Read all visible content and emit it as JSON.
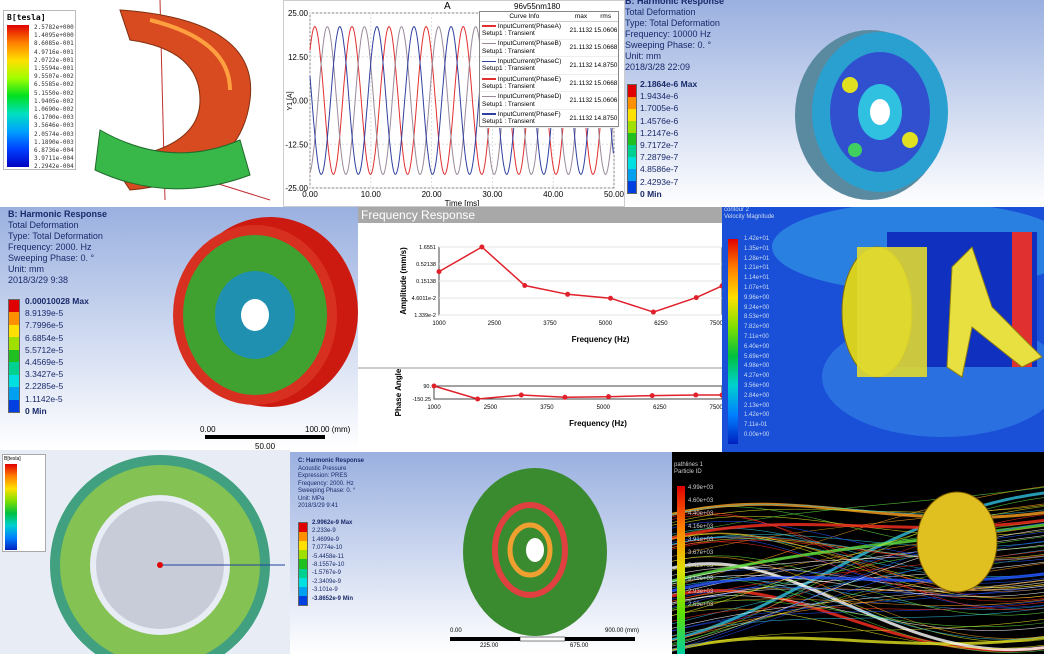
{
  "panel_magnet": {
    "legend_title": "B[tesla]",
    "legend_values": [
      "2.5782e+000",
      "1.4095e+000",
      "8.6085e-001",
      "4.9716e-001",
      "2.0722e-001",
      "1.5594e-001",
      "9.5507e-002",
      "6.5585e-002",
      "5.1550e-002",
      "1.9405e-002",
      "1.0690e-002",
      "6.1700e-003",
      "3.5646e-003",
      "2.0574e-003",
      "1.1890e-003",
      "6.8736e-004",
      "3.9711e-004",
      "2.2942e-004"
    ]
  },
  "panel_current": {
    "title": "A",
    "project_label": "96v55nm180",
    "legend_headers": [
      "Curve Info",
      "max",
      "rms"
    ],
    "legend_rows": [
      {
        "line1": "InputCurrent(PhaseA)",
        "line2": "Setup1 : Transient",
        "max": "21.1132",
        "rms": "15.0606",
        "color": "#e03030"
      },
      {
        "line1": "InputCurrent(PhaseB)",
        "line2": "Setup1 : Transient",
        "max": "21.1132",
        "rms": "15.0668",
        "color": "#9a8a9a"
      },
      {
        "line1": "InputCurrent(PhaseC)",
        "line2": "Setup1 : Transient",
        "max": "21.1132",
        "rms": "14.8750",
        "color": "#3040a0"
      },
      {
        "line1": "InputCurrent(PhaseE)",
        "line2": "Setup1 : Transient",
        "max": "21.1132",
        "rms": "15.0668",
        "color": "#e03030"
      },
      {
        "line1": "InputCurrent(PhaseD)",
        "line2": "Setup1 : Transient",
        "max": "21.1132",
        "rms": "15.0606",
        "color": "#9a8a9a"
      },
      {
        "line1": "InputCurrent(PhaseF)",
        "line2": "Setup1 : Transient",
        "max": "21.1132",
        "rms": "14.8750",
        "color": "#3040a0"
      }
    ]
  },
  "chart_data": [
    {
      "type": "line",
      "title": "A",
      "xlabel": "Time [ms]",
      "ylabel": "Y1 [A]",
      "xlim": [
        0,
        50
      ],
      "ylim": [
        -25,
        25
      ],
      "xticks": [
        "0.00",
        "10.00",
        "20.00",
        "30.00",
        "40.00",
        "50.00"
      ],
      "yticks": [
        "25.00",
        "12.50",
        "0.00",
        "-12.50",
        "-25.00"
      ],
      "grid": true,
      "legend": "top-right",
      "series": [
        {
          "name": "InputCurrent(PhaseA) Setup1 : Transient",
          "amplitude": 21.1132,
          "period_ms": 6.1,
          "peak_time_ms": 0.8,
          "color": "#e03030"
        },
        {
          "name": "InputCurrent(PhaseB) Setup1 : Transient",
          "amplitude": 21.1132,
          "period_ms": 6.1,
          "peak_time_ms": 2.85,
          "color": "#9a8a9a"
        },
        {
          "name": "InputCurrent(PhaseC) Setup1 : Transient",
          "amplitude": 21.1132,
          "period_ms": 6.1,
          "peak_time_ms": 4.9,
          "color": "#3040a0"
        }
      ]
    },
    {
      "type": "line",
      "title": "Frequency Response",
      "xlabel": "Frequency (Hz)",
      "ylabel": "Amplitude (mm/s)",
      "yscale": "log",
      "xlim": [
        1000,
        7600
      ],
      "ylim": [
        0.01339,
        1.6551
      ],
      "xticks": [
        "1000",
        "2500",
        "3750",
        "5000",
        "6250",
        "7500"
      ],
      "yticks": [
        "1.6551",
        "0.52138",
        "0.15138",
        "4.6011e-2",
        "1.339e-2"
      ],
      "x": [
        1000,
        2000,
        3000,
        4000,
        5000,
        6000,
        7000,
        7600
      ],
      "values": [
        0.29,
        1.6551,
        0.108,
        0.058,
        0.044,
        0.0165,
        0.046,
        0.105
      ],
      "color": "#e0202a"
    },
    {
      "type": "line",
      "xlabel": "Frequency (Hz)",
      "ylabel": "Phase Angle",
      "xlim": [
        1000,
        7600
      ],
      "ylim": [
        -150.25,
        90
      ],
      "xticks": [
        "1000",
        "2500",
        "3750",
        "5000",
        "6250",
        "7500"
      ],
      "yticks": [
        "90.",
        "-150.25"
      ],
      "x": [
        1000,
        2000,
        3000,
        4000,
        5000,
        6000,
        7000,
        7600
      ],
      "values": [
        90,
        -150,
        -76,
        -119,
        -107,
        -88,
        -76,
        -76
      ],
      "color": "#e0202a"
    }
  ],
  "panel_wheel_top": {
    "info": [
      "B: Harmonic Response",
      "Total Deformation",
      "Type: Total Deformation",
      "Frequency: 10000 Hz",
      "Sweeping Phase: 0. °",
      "Unit: mm",
      "2018/3/28 22:09"
    ],
    "legend_values": [
      "2.1864e-6 Max",
      "1.9434e-6",
      "1.7005e-6",
      "1.4576e-6",
      "1.2147e-6",
      "9.7172e-7",
      "7.2879e-7",
      "4.8586e-7",
      "2.4293e-7",
      "0 Min"
    ]
  },
  "panel_wheel_mid": {
    "info": [
      "B: Harmonic Response",
      "Total Deformation",
      "Type: Total Deformation",
      "Frequency: 2000. Hz",
      "Sweeping Phase: 0. °",
      "Unit: mm",
      "2018/3/29 9:38"
    ],
    "legend_values": [
      "0.00010028 Max",
      "8.9139e-5",
      "7.7996e-5",
      "6.6854e-5",
      "5.5712e-5",
      "4.4569e-5",
      "3.3427e-5",
      "2.2285e-5",
      "1.1142e-5",
      "0 Min"
    ],
    "scale_labels": [
      "0.00",
      "50.00",
      "100.00 (mm)"
    ]
  },
  "panel_freq": {
    "header": "Frequency Response"
  },
  "panel_cfd": {
    "legend_title": [
      "contour 2",
      "Velocity Magnitude"
    ],
    "legend_values": [
      "1.42e+01",
      "1.35e+01",
      "1.28e+01",
      "1.21e+01",
      "1.14e+01",
      "1.07e+01",
      "9.96e+00",
      "9.24e+00",
      "8.53e+00",
      "7.82e+00",
      "7.11e+00",
      "6.40e+00",
      "5.69e+00",
      "4.98e+00",
      "4.27e+00",
      "3.56e+00",
      "2.84e+00",
      "2.13e+00",
      "1.42e+00",
      "7.11e-01",
      "0.00e+00"
    ]
  },
  "panel_stator": {
    "legend_title": "B[tesla]"
  },
  "panel_acoustic": {
    "info": [
      "C: Harmonic Response",
      "Acoustic Pressure",
      "Expression: PRES",
      "Frequency: 2000. Hz",
      "Sweeping Phase: 0. °",
      "Unit: MPa",
      "2018/3/29 9:41"
    ],
    "legend_values": [
      "2.9962e-9 Max",
      "2.233e-9",
      "1.4699e-9",
      "7.0774e-10",
      "-5.4458e-11",
      "-8.1557e-10",
      "-1.5767e-9",
      "-2.3409e-9",
      "-3.101e-9",
      "-3.8652e-9 Min"
    ],
    "scale_labels": [
      "0.00",
      "225.00",
      "675.00",
      "900.00 (mm)"
    ]
  },
  "panel_particles": {
    "legend_title": [
      "pathlines 1",
      "Particle ID"
    ],
    "legend_values": [
      "4.99e+03",
      "4.60e+03",
      "4.40e+03",
      "4.16e+03",
      "3.91e+03",
      "3.67e+03",
      "3.42e+03",
      "3.18e+03",
      "2.93e+03",
      "2.69e+03"
    ]
  }
}
